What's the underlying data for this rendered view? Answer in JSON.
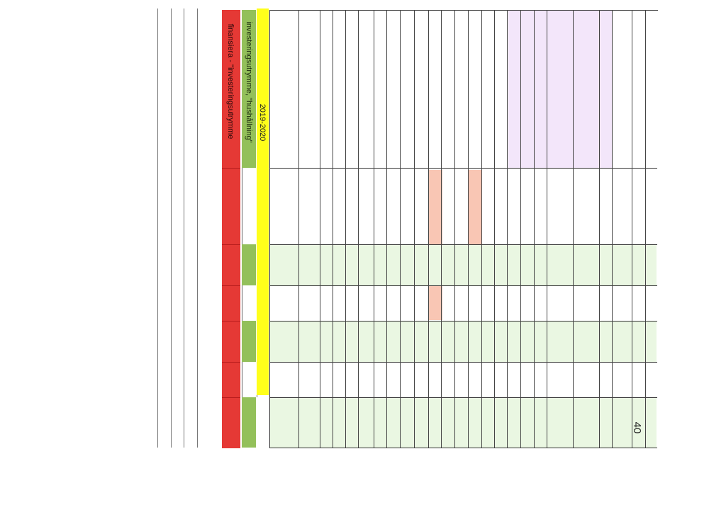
{
  "header": {
    "col_red_label": "finansiera - \"investeringsutrymme",
    "col_green_label": "investeringsutrymme, \"hushållning\"",
    "col_yellow_label": "2019-2020"
  },
  "page_number": "40",
  "colors": {
    "red_band": "#e53935",
    "green_band": "#93c05a",
    "yellow_band": "#ffff1a",
    "green_rows": "#eaf7e2",
    "lavender_block": "#f3e6fa",
    "salmon_marks": "#f9c6b4"
  }
}
